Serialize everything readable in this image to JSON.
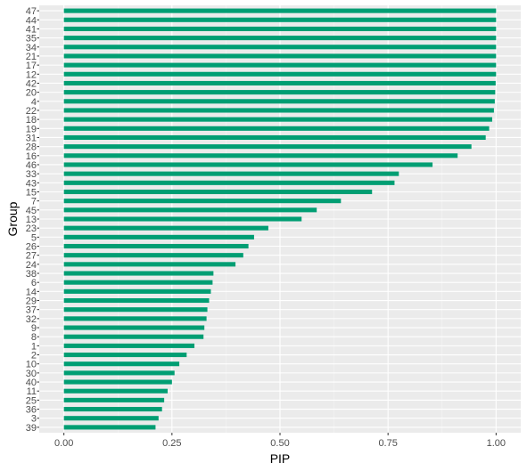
{
  "chart_data": {
    "type": "bar",
    "orientation": "horizontal",
    "xlabel": "PIP",
    "ylabel": "Group",
    "xlim": [
      -0.0571,
      1.0571
    ],
    "xticks": [
      0.0,
      0.25,
      0.5,
      0.75,
      1.0
    ],
    "xtick_labels": [
      "0.00",
      "0.25",
      "0.50",
      "0.75",
      "1.00"
    ],
    "grid": true,
    "categories": [
      "47",
      "44",
      "41",
      "35",
      "34",
      "21",
      "17",
      "12",
      "42",
      "20",
      "4",
      "22",
      "18",
      "19",
      "31",
      "28",
      "16",
      "46",
      "33",
      "43",
      "15",
      "7",
      "45",
      "13",
      "23",
      "5",
      "26",
      "27",
      "24",
      "38",
      "6",
      "14",
      "29",
      "37",
      "32",
      "9",
      "8",
      "1",
      "2",
      "10",
      "30",
      "40",
      "11",
      "25",
      "36",
      "3",
      "39"
    ],
    "values": [
      1.0,
      1.0,
      1.0,
      1.0,
      1.0,
      1.0,
      1.0,
      1.0,
      0.999,
      0.998,
      0.997,
      0.995,
      0.991,
      0.984,
      0.976,
      0.943,
      0.911,
      0.853,
      0.775,
      0.765,
      0.713,
      0.641,
      0.585,
      0.55,
      0.473,
      0.44,
      0.427,
      0.415,
      0.397,
      0.346,
      0.344,
      0.34,
      0.336,
      0.332,
      0.33,
      0.325,
      0.323,
      0.302,
      0.284,
      0.267,
      0.256,
      0.25,
      0.24,
      0.232,
      0.227,
      0.219,
      0.212
    ],
    "colors": {
      "bar": "#009E73",
      "panel_background": "#EBEBEB",
      "grid_major": "#FFFFFF",
      "grid_minor": "#F5F5F5",
      "tick_label": "#4D4D4D",
      "axis_title": "#000000"
    }
  }
}
